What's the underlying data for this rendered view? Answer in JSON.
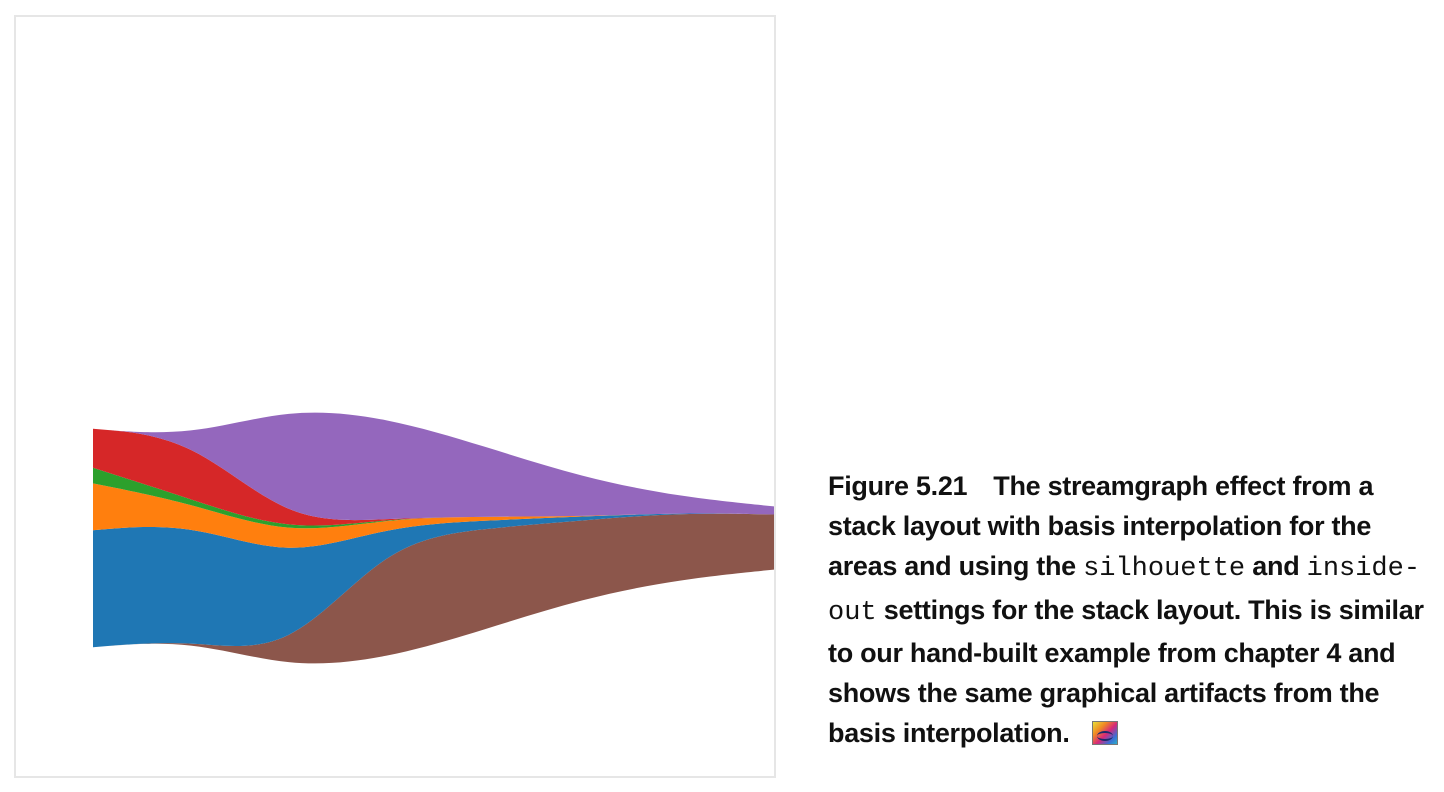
{
  "figure": {
    "caption": {
      "label": "Figure 5.21",
      "text_1": "The streamgraph effect from a stack layout with basis interpolation for the areas and using the ",
      "code_1": "silhouette",
      "text_2": " and ",
      "code_2": "inside-out",
      "text_3": " settings for the stack layout. This is similar to our hand-built example from chapter 4 and shows the same graphical artifacts from the basis interpolation.",
      "badge_icon": "liveview-icon"
    }
  },
  "chart_data": {
    "type": "area",
    "offset": "silhouette",
    "order": "inside-out",
    "interpolation": "basis",
    "grid": false,
    "legend": "none",
    "x": [
      0,
      1,
      2,
      3,
      4,
      5,
      6,
      7
    ],
    "series": [
      {
        "color": "#8c564b",
        "values": [
          0,
          0,
          3,
          30,
          26,
          20,
          17,
          14
        ]
      },
      {
        "color": "#1f77b4",
        "values": [
          30,
          30,
          25,
          4,
          2,
          1,
          0,
          0
        ]
      },
      {
        "color": "#ff7f0e",
        "values": [
          12,
          5,
          6,
          2,
          1,
          0,
          0,
          0
        ]
      },
      {
        "color": "#2ca02c",
        "values": [
          4,
          1,
          1,
          0,
          0,
          0,
          0,
          0
        ]
      },
      {
        "color": "#d62728",
        "values": [
          10,
          16,
          2,
          0,
          0,
          0,
          0,
          0
        ]
      },
      {
        "color": "#9467bd",
        "values": [
          0,
          0,
          30,
          26,
          18,
          10,
          4,
          2
        ]
      }
    ]
  }
}
